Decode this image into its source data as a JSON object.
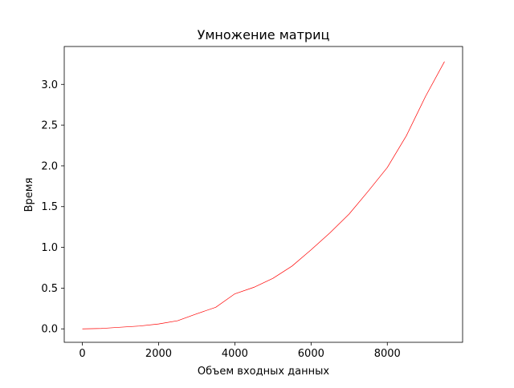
{
  "chart_data": {
    "type": "line",
    "title": "Умножение матриц",
    "xlabel": "Объем входных данных",
    "ylabel": "Время",
    "xlim": [
      -475,
      9975
    ],
    "ylim": [
      -0.165,
      3.465
    ],
    "xticks": [
      0,
      2000,
      4000,
      6000,
      8000
    ],
    "xtick_labels": [
      "0",
      "2000",
      "4000",
      "6000",
      "8000"
    ],
    "yticks": [
      0.0,
      0.5,
      1.0,
      1.5,
      2.0,
      2.5,
      3.0
    ],
    "ytick_labels": [
      "0.0",
      "0.5",
      "1.0",
      "1.5",
      "2.0",
      "2.5",
      "3.0"
    ],
    "grid": false,
    "series": [
      {
        "color": "#ff0000",
        "x": [
          0,
          500,
          1000,
          1500,
          2000,
          2500,
          3000,
          3500,
          4000,
          4500,
          5000,
          5500,
          6000,
          6500,
          7000,
          7500,
          8000,
          8500,
          9000,
          9500
        ],
        "y": [
          0.0,
          0.005,
          0.02,
          0.035,
          0.06,
          0.1,
          0.185,
          0.265,
          0.43,
          0.51,
          0.62,
          0.77,
          0.97,
          1.18,
          1.41,
          1.69,
          1.98,
          2.37,
          2.85,
          3.28
        ]
      }
    ]
  }
}
